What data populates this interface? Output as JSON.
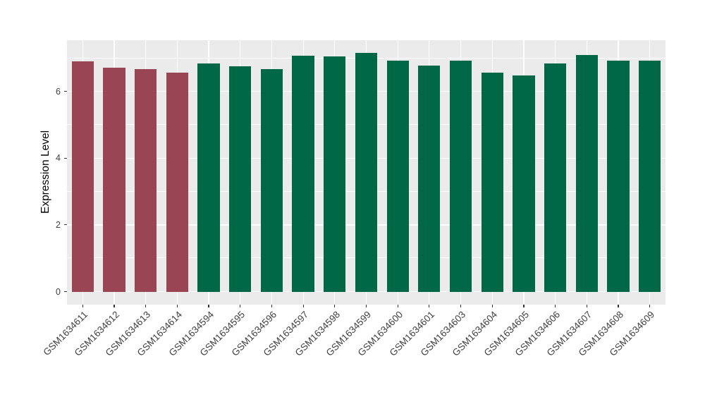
{
  "chart_data": {
    "type": "bar",
    "title": "",
    "xlabel": "",
    "ylabel": "Expression Level",
    "categories": [
      "GSM1634611",
      "GSM1634612",
      "GSM1634613",
      "GSM1634614",
      "GSM1634594",
      "GSM1634595",
      "GSM1634596",
      "GSM1634597",
      "GSM1634598",
      "GSM1634599",
      "GSM1634600",
      "GSM1634601",
      "GSM1634603",
      "GSM1634604",
      "GSM1634605",
      "GSM1634606",
      "GSM1634607",
      "GSM1634608",
      "GSM1634609"
    ],
    "values": [
      6.9,
      6.71,
      6.66,
      6.56,
      6.83,
      6.76,
      6.68,
      7.08,
      7.06,
      7.16,
      6.92,
      6.77,
      6.92,
      6.57,
      6.49,
      6.83,
      7.09,
      6.93,
      6.93
    ],
    "bar_colors": [
      "#9A4553",
      "#9A4553",
      "#9A4553",
      "#9A4553",
      "#006847",
      "#006847",
      "#006847",
      "#006847",
      "#006847",
      "#006847",
      "#006847",
      "#006847",
      "#006847",
      "#006847",
      "#006847",
      "#006847",
      "#006847",
      "#006847",
      "#006847"
    ],
    "y_ticks": [
      0,
      2,
      4,
      6
    ],
    "y_minor_gridlines": [
      1,
      3,
      5,
      7
    ],
    "ylim": [
      0,
      7.5
    ],
    "bar_width_ratio": 0.7,
    "grid": "horizontal major and minor, vertical at category centers",
    "legend_position": "none",
    "x_label_angle": 45
  },
  "colors": {
    "highlight_bars": "#9A4553",
    "default_bars": "#006847",
    "panel_background": "#EBEBEB",
    "gridline": "#FFFFFF",
    "axis_text": "#404040",
    "axis_title": "#000000",
    "tick_mark": "#333333",
    "figure_background": "#FFFFFF"
  }
}
